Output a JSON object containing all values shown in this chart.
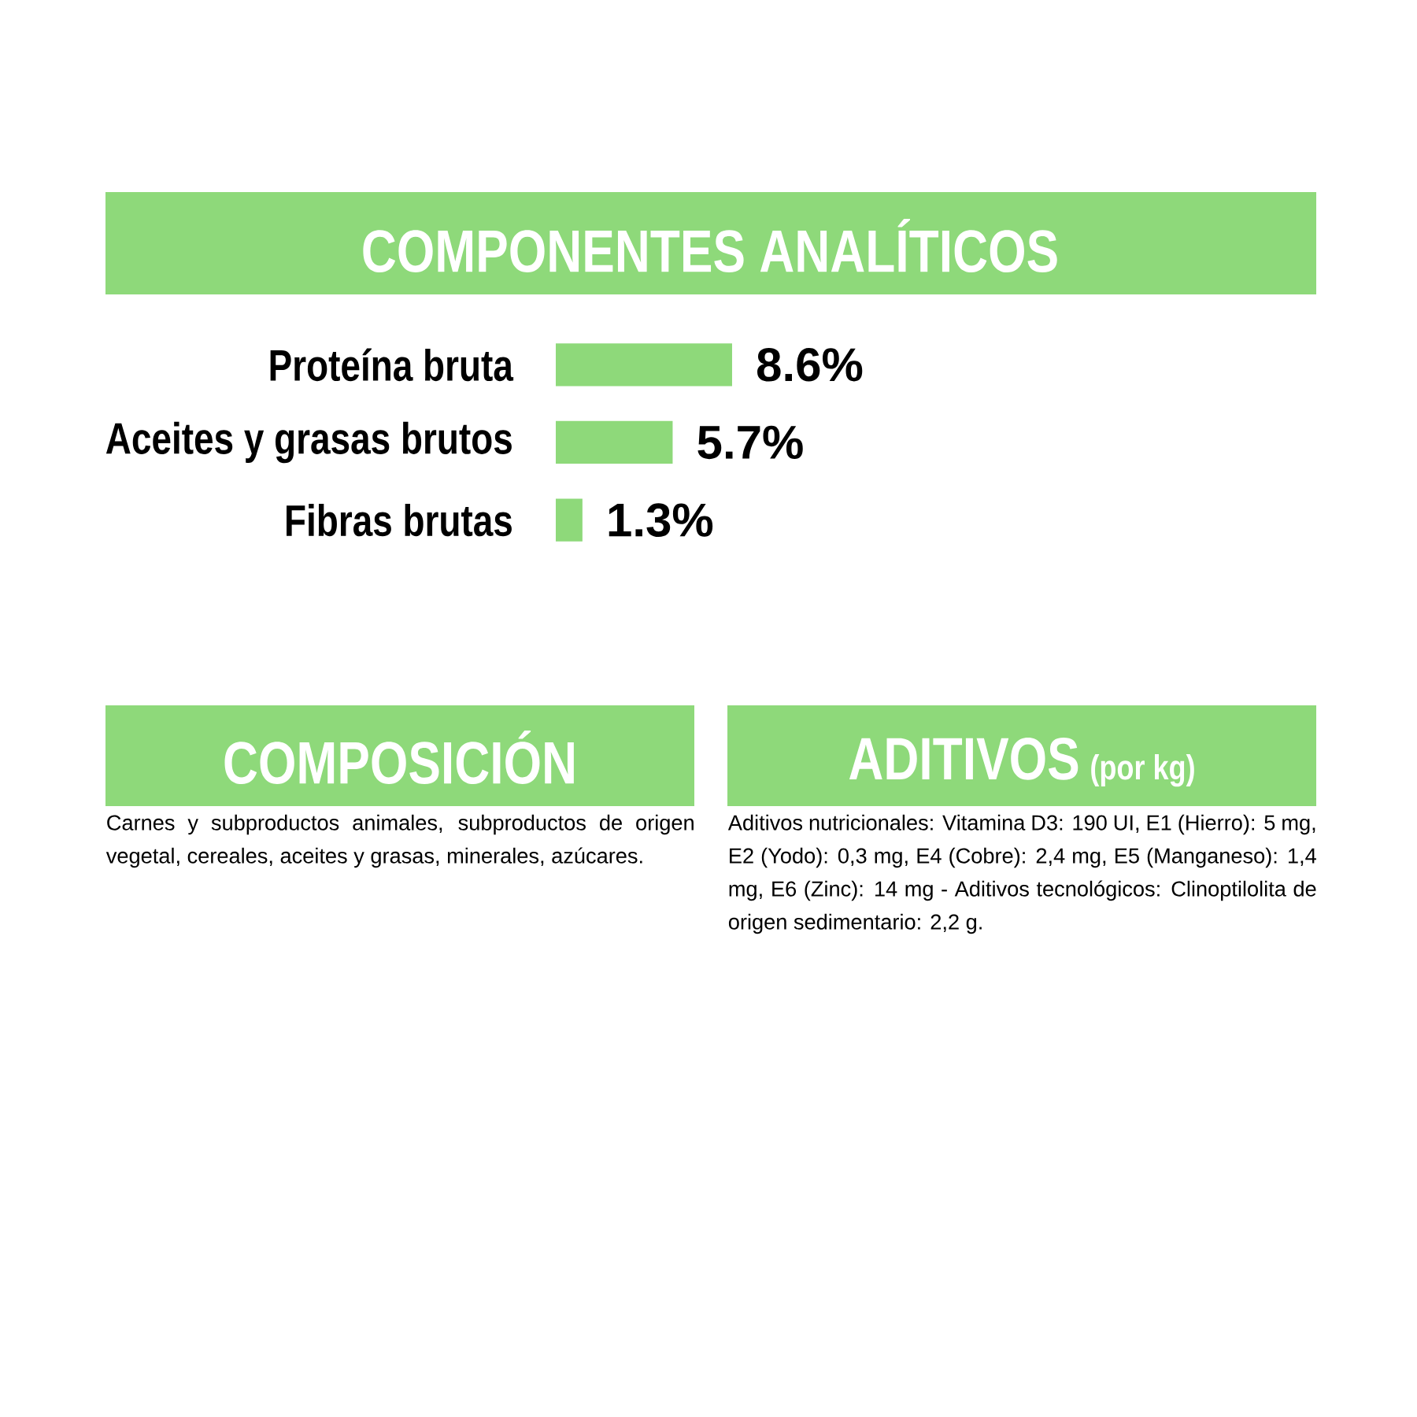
{
  "chart_data": {
    "type": "bar",
    "orientation": "horizontal",
    "title": "COMPONENTES ANALÍTICOS",
    "categories": [
      "Proteína bruta",
      "Aceites y grasas brutos",
      "Fibras brutas"
    ],
    "values": [
      8.6,
      5.7,
      1.3
    ],
    "value_labels": [
      "8.6%",
      "5.7%",
      "1.3%"
    ],
    "color": "#8ed97a",
    "annotations": [
      "COMPOSICIÓN",
      "Carnes y subproductos animales, subproductos de origen vegetal, cereales, aceites y grasas, minerales, azúcares.",
      "ADITIVOS",
      "(por kg)",
      "Aditivos nutricionales: Vitamina D3: 190 UI, E1 (Hierro): 5 mg, E2 (Yodo): 0,3 mg, E4 (Cobre): 2,4 mg, E5 (Manganeso): 1,4 mg, E6 (Zinc): 14 mg - Aditivos tecnológicos: Clinoptilolita de origen sedimentario: 2,2 g."
    ]
  }
}
